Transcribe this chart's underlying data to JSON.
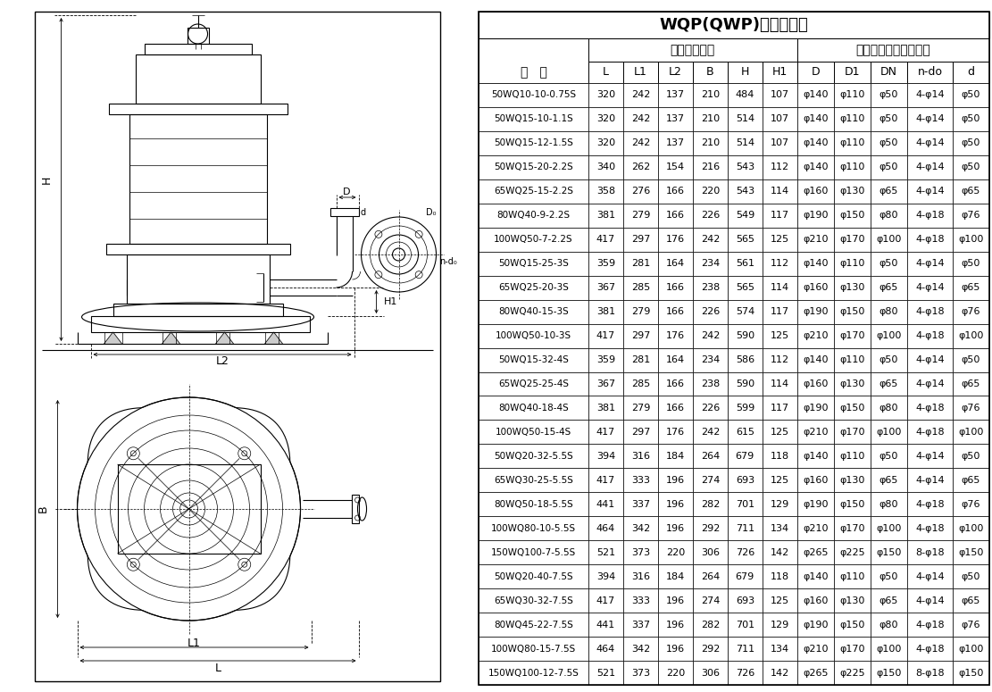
{
  "title": "WQP(QWP)安装尺寸表",
  "header1_line1": "型   号",
  "header2": "外形安装尺寸",
  "header3": "泵出口法兰及连接尺寸",
  "col_headers": [
    "L",
    "L1",
    "L2",
    "B",
    "H",
    "H1",
    "D",
    "D1",
    "DN",
    "n-do",
    "d"
  ],
  "rows": [
    [
      "50WQ10-10-0.75S",
      "320",
      "242",
      "137",
      "210",
      "484",
      "107",
      "φ140",
      "φ110",
      "φ50",
      "4-φ14",
      "φ50"
    ],
    [
      "50WQ15-10-1.1S",
      "320",
      "242",
      "137",
      "210",
      "514",
      "107",
      "φ140",
      "φ110",
      "φ50",
      "4-φ14",
      "φ50"
    ],
    [
      "50WQ15-12-1.5S",
      "320",
      "242",
      "137",
      "210",
      "514",
      "107",
      "φ140",
      "φ110",
      "φ50",
      "4-φ14",
      "φ50"
    ],
    [
      "50WQ15-20-2.2S",
      "340",
      "262",
      "154",
      "216",
      "543",
      "112",
      "φ140",
      "φ110",
      "φ50",
      "4-φ14",
      "φ50"
    ],
    [
      "65WQ25-15-2.2S",
      "358",
      "276",
      "166",
      "220",
      "543",
      "114",
      "φ160",
      "φ130",
      "φ65",
      "4-φ14",
      "φ65"
    ],
    [
      "80WQ40-9-2.2S",
      "381",
      "279",
      "166",
      "226",
      "549",
      "117",
      "φ190",
      "φ150",
      "φ80",
      "4-φ18",
      "φ76"
    ],
    [
      "100WQ50-7-2.2S",
      "417",
      "297",
      "176",
      "242",
      "565",
      "125",
      "φ210",
      "φ170",
      "φ100",
      "4-φ18",
      "φ100"
    ],
    [
      "50WQ15-25-3S",
      "359",
      "281",
      "164",
      "234",
      "561",
      "112",
      "φ140",
      "φ110",
      "φ50",
      "4-φ14",
      "φ50"
    ],
    [
      "65WQ25-20-3S",
      "367",
      "285",
      "166",
      "238",
      "565",
      "114",
      "φ160",
      "φ130",
      "φ65",
      "4-φ14",
      "φ65"
    ],
    [
      "80WQ40-15-3S",
      "381",
      "279",
      "166",
      "226",
      "574",
      "117",
      "φ190",
      "φ150",
      "φ80",
      "4-φ18",
      "φ76"
    ],
    [
      "100WQ50-10-3S",
      "417",
      "297",
      "176",
      "242",
      "590",
      "125",
      "φ210",
      "φ170",
      "φ100",
      "4-φ18",
      "φ100"
    ],
    [
      "50WQ15-32-4S",
      "359",
      "281",
      "164",
      "234",
      "586",
      "112",
      "φ140",
      "φ110",
      "φ50",
      "4-φ14",
      "φ50"
    ],
    [
      "65WQ25-25-4S",
      "367",
      "285",
      "166",
      "238",
      "590",
      "114",
      "φ160",
      "φ130",
      "φ65",
      "4-φ14",
      "φ65"
    ],
    [
      "80WQ40-18-4S",
      "381",
      "279",
      "166",
      "226",
      "599",
      "117",
      "φ190",
      "φ150",
      "φ80",
      "4-φ18",
      "φ76"
    ],
    [
      "100WQ50-15-4S",
      "417",
      "297",
      "176",
      "242",
      "615",
      "125",
      "φ210",
      "φ170",
      "φ100",
      "4-φ18",
      "φ100"
    ],
    [
      "50WQ20-32-5.5S",
      "394",
      "316",
      "184",
      "264",
      "679",
      "118",
      "φ140",
      "φ110",
      "φ50",
      "4-φ14",
      "φ50"
    ],
    [
      "65WQ30-25-5.5S",
      "417",
      "333",
      "196",
      "274",
      "693",
      "125",
      "φ160",
      "φ130",
      "φ65",
      "4-φ14",
      "φ65"
    ],
    [
      "80WQ50-18-5.5S",
      "441",
      "337",
      "196",
      "282",
      "701",
      "129",
      "φ190",
      "φ150",
      "φ80",
      "4-φ18",
      "φ76"
    ],
    [
      "100WQ80-10-5.5S",
      "464",
      "342",
      "196",
      "292",
      "711",
      "134",
      "φ210",
      "φ170",
      "φ100",
      "4-φ18",
      "φ100"
    ],
    [
      "150WQ100-7-5.5S",
      "521",
      "373",
      "220",
      "306",
      "726",
      "142",
      "φ265",
      "φ225",
      "φ150",
      "8-φ18",
      "φ150"
    ],
    [
      "50WQ20-40-7.5S",
      "394",
      "316",
      "184",
      "264",
      "679",
      "118",
      "φ140",
      "φ110",
      "φ50",
      "4-φ14",
      "φ50"
    ],
    [
      "65WQ30-32-7.5S",
      "417",
      "333",
      "196",
      "274",
      "693",
      "125",
      "φ160",
      "φ130",
      "φ65",
      "4-φ14",
      "φ65"
    ],
    [
      "80WQ45-22-7.5S",
      "441",
      "337",
      "196",
      "282",
      "701",
      "129",
      "φ190",
      "φ150",
      "φ80",
      "4-φ18",
      "φ76"
    ],
    [
      "100WQ80-15-7.5S",
      "464",
      "342",
      "196",
      "292",
      "711",
      "134",
      "φ210",
      "φ170",
      "φ100",
      "4-φ18",
      "φ100"
    ],
    [
      "150WQ100-12-7.5S",
      "521",
      "373",
      "220",
      "306",
      "726",
      "142",
      "φ265",
      "φ225",
      "φ150",
      "8-φ18",
      "φ150"
    ]
  ],
  "bg_color": "#ffffff",
  "border_color": "#000000",
  "text_color": "#000000"
}
